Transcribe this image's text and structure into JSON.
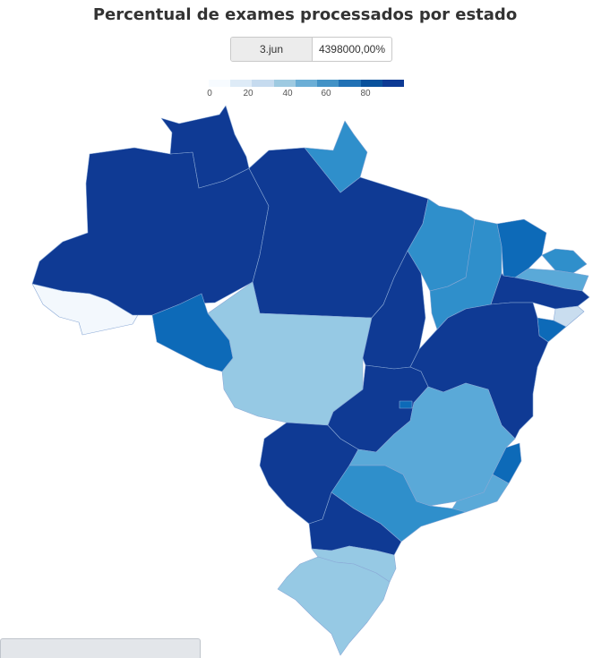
{
  "title": "Percentual de exames processados por estado",
  "date_selector": {
    "date": "3.jun",
    "value": "4398000,00%"
  },
  "legend": {
    "ticks": [
      "0",
      "20",
      "40",
      "60",
      "80"
    ],
    "colors": [
      "#f7fbff",
      "#deebf7",
      "#c6dbef",
      "#9ecae1",
      "#6baed6",
      "#4292c6",
      "#2171b5",
      "#08519c",
      "#0d3a94"
    ]
  },
  "palette": {
    "darkest": "#0f3a94",
    "dark": "#0d6ab8",
    "medium": "#2f8fcb",
    "medium_light": "#5aa9d8",
    "light": "#96c9e4",
    "very_light": "#c9ddef",
    "lightest": "#f3f8fd"
  },
  "states": [
    {
      "name": "AC",
      "level": "lightest"
    },
    {
      "name": "AM",
      "level": "darkest"
    },
    {
      "name": "RR",
      "level": "darkest"
    },
    {
      "name": "PA",
      "level": "darkest"
    },
    {
      "name": "AP",
      "level": "medium"
    },
    {
      "name": "RO",
      "level": "dark"
    },
    {
      "name": "MT",
      "level": "light"
    },
    {
      "name": "TO",
      "level": "darkest"
    },
    {
      "name": "MA",
      "level": "medium"
    },
    {
      "name": "PI",
      "level": "medium"
    },
    {
      "name": "CE",
      "level": "dark"
    },
    {
      "name": "RN",
      "level": "medium"
    },
    {
      "name": "PB",
      "level": "medium_light"
    },
    {
      "name": "PE",
      "level": "darkest"
    },
    {
      "name": "AL",
      "level": "very_light"
    },
    {
      "name": "SE",
      "level": "dark"
    },
    {
      "name": "BA",
      "level": "darkest"
    },
    {
      "name": "GO",
      "level": "darkest"
    },
    {
      "name": "DF",
      "level": "dark"
    },
    {
      "name": "MS",
      "level": "darkest"
    },
    {
      "name": "MG",
      "level": "medium_light"
    },
    {
      "name": "ES",
      "level": "dark"
    },
    {
      "name": "RJ",
      "level": "medium_light"
    },
    {
      "name": "SP",
      "level": "medium"
    },
    {
      "name": "PR",
      "level": "darkest"
    },
    {
      "name": "SC",
      "level": "light"
    },
    {
      "name": "RS",
      "level": "light"
    }
  ]
}
